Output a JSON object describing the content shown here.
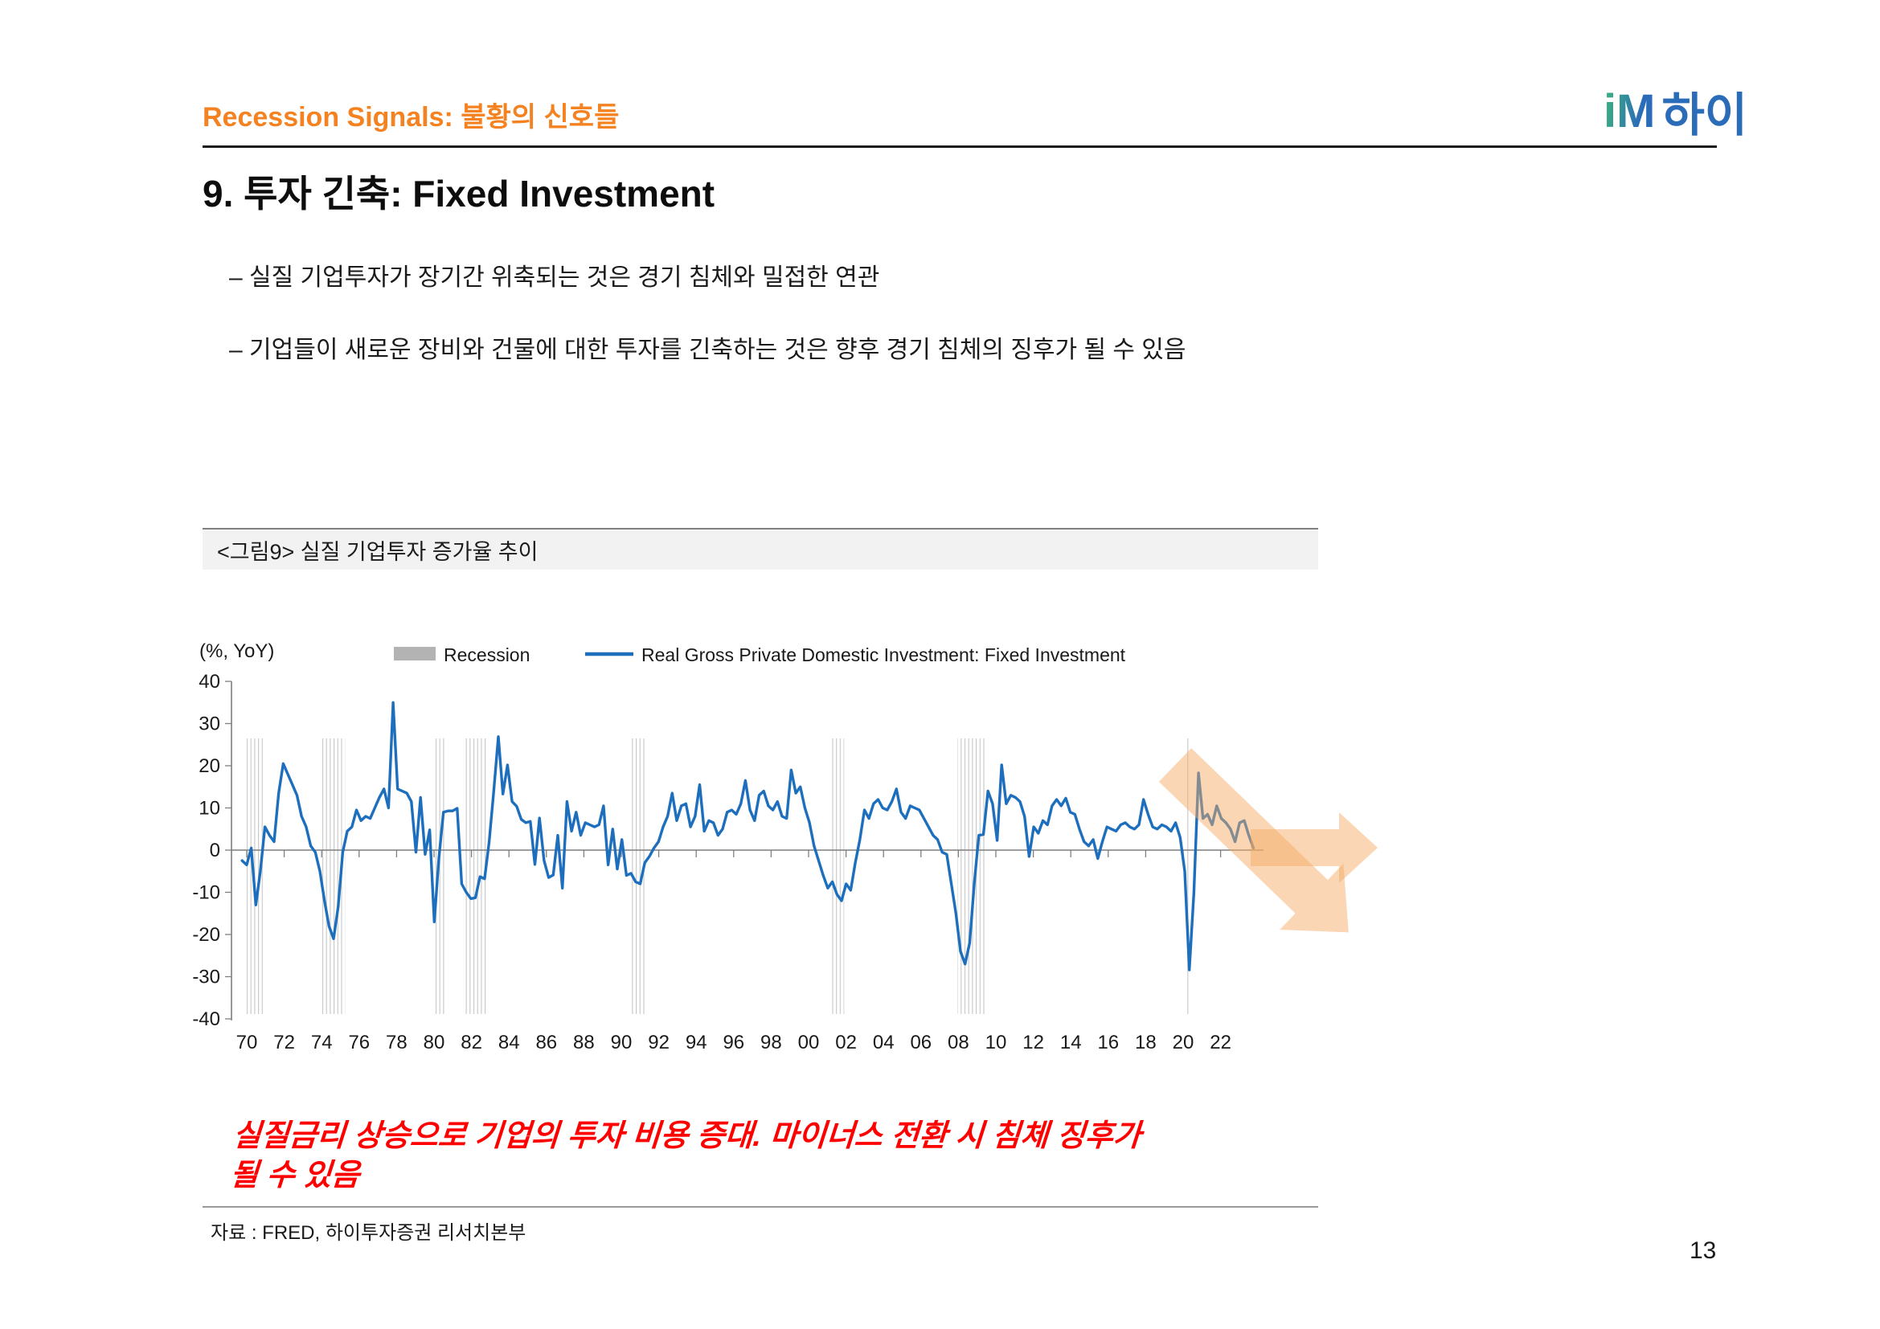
{
  "header": {
    "section_title": "Recession Signals: 불황의 신호들",
    "logo_im": "iM",
    "logo_hi": "하이"
  },
  "slide": {
    "title": "9. 투자 긴축: Fixed Investment",
    "bullets": [
      "– 실질 기업투자가 장기간 위축되는 것은 경기 침체와 밀접한 연관",
      "– 기업들이 새로운 장비와 건물에 대한 투자를 긴축하는 것은 향후 경기 침체의 징후가 될 수 있음"
    ],
    "page_number": "13"
  },
  "figure": {
    "caption": "<그림9> 실질 기업투자 증가율 추이",
    "note_line1": "실질금리 상승으로 기업의 투자 비용 증대. 마이너스 전환 시 침체 징후가",
    "note_line2": "될 수 있음",
    "source": "자료 : FRED, 하이투자증권 리서치본부"
  },
  "chart_data": {
    "type": "line",
    "title": "<그림9> 실질 기업투자 증가율 추이",
    "ylabel": "(%, YoY)",
    "ylim": [
      -40,
      40
    ],
    "yticks": [
      40,
      30,
      20,
      10,
      0,
      -10,
      -20,
      -30,
      -40
    ],
    "xtick_labels": [
      "70",
      "72",
      "74",
      "76",
      "78",
      "80",
      "82",
      "84",
      "86",
      "88",
      "90",
      "92",
      "94",
      "96",
      "98",
      "00",
      "02",
      "04",
      "06",
      "08",
      "10",
      "12",
      "14",
      "16",
      "18",
      "20",
      "22"
    ],
    "xtick_years": [
      1970,
      1972,
      1974,
      1976,
      1978,
      1980,
      1982,
      1984,
      1986,
      1988,
      1990,
      1992,
      1994,
      1996,
      1998,
      2000,
      2002,
      2004,
      2006,
      2008,
      2010,
      2012,
      2014,
      2016,
      2018,
      2020,
      2022
    ],
    "legend": [
      {
        "label": "Recession",
        "type": "patch",
        "color": "#b3b3b3"
      },
      {
        "label": "Real Gross Private Domestic Investment: Fixed Investment",
        "type": "line",
        "color": "#1D6FBD"
      }
    ],
    "grid": false,
    "legend_position": "top-center",
    "recessions": [
      [
        1969.95,
        1970.95
      ],
      [
        1973.9,
        1975.25
      ],
      [
        1980.0,
        1980.6
      ],
      [
        1981.55,
        1982.9
      ],
      [
        1990.55,
        1991.25
      ],
      [
        2001.2,
        2001.9
      ],
      [
        2007.95,
        2009.5
      ],
      [
        2020.1,
        2020.35
      ]
    ],
    "series": [
      {
        "name": "Real Gross Private Domestic Investment: Fixed Investment",
        "x_start": 1969.75,
        "x_end": 2023.75,
        "values": [
          -2.5,
          -3.5,
          0.5,
          -13,
          -5,
          5.5,
          3.5,
          2,
          13.5,
          20.5,
          18,
          15.5,
          13,
          8,
          5.5,
          1,
          -0.5,
          -5,
          -12,
          -18,
          -21,
          -13.5,
          -0.5,
          4.5,
          5.5,
          9.5,
          7,
          8,
          7.5,
          10,
          12.5,
          14.5,
          10,
          35,
          14.5,
          14,
          13.5,
          11.5,
          -0.5,
          12.5,
          -1,
          4.8,
          -17,
          -2,
          9,
          9.3,
          9.3,
          9.9,
          -8,
          -10,
          -11.5,
          -11.3,
          -6.3,
          -6.8,
          2,
          14,
          26.9,
          13.3,
          20.2,
          11.5,
          10.4,
          7.3,
          6.5,
          6.8,
          -3.4,
          7.6,
          -2.5,
          -6.5,
          -5.9,
          3.5,
          -9,
          11.5,
          4.5,
          9,
          3.5,
          6.5,
          6,
          5.5,
          6,
          10.5,
          -3.5,
          5,
          -4.5,
          2.5,
          -6,
          -5.5,
          -7.5,
          -8,
          -3,
          -1.5,
          0.5,
          2,
          5.5,
          8,
          13.5,
          7,
          10.5,
          11,
          5.5,
          8,
          15.5,
          4.5,
          7,
          6.5,
          3.5,
          5,
          9,
          9.5,
          8.5,
          11,
          16.5,
          9.5,
          7,
          13,
          14,
          10.5,
          9.5,
          11.5,
          8,
          7.5,
          19,
          13.5,
          15,
          10,
          6.5,
          1,
          -2.5,
          -6,
          -9,
          -7.5,
          -10.5,
          -12,
          -8,
          -9.5,
          -3,
          2.5,
          9.5,
          7.5,
          11,
          12,
          10,
          9.5,
          11.5,
          14.5,
          9,
          7.5,
          10.5,
          10,
          9.5,
          7.5,
          5.5,
          3.5,
          2.5,
          -0.5,
          -1,
          -8,
          -15,
          -24,
          -27,
          -22,
          -8,
          3.5,
          3.7,
          14,
          11,
          2.3,
          20.2,
          11,
          13,
          12.5,
          11.5,
          8,
          -1.5,
          5.5,
          4,
          7,
          6,
          10.5,
          12,
          10.5,
          12.3,
          9,
          8.5,
          5,
          2,
          1,
          2.5,
          -2,
          2,
          5.5,
          5,
          4.5,
          6,
          6.5,
          5.5,
          5,
          6,
          12,
          8.5,
          5.5,
          5,
          6,
          5.5,
          4.5,
          6.5,
          3,
          -5,
          -28.4,
          -10,
          18.3,
          7.5,
          8.5,
          6,
          10.5,
          7.5,
          6.5,
          5,
          2,
          6.5,
          7,
          3.5,
          0.5
        ]
      }
    ],
    "colors": {
      "line": "#1D6FBD",
      "axis": "#7f7f7f",
      "tick_label": "#1a1a1a",
      "recession_hatch": "#c6c6c6",
      "arrow": "#F5A962"
    },
    "annotations": [
      "down-right-arrow",
      "right-arrow"
    ]
  }
}
